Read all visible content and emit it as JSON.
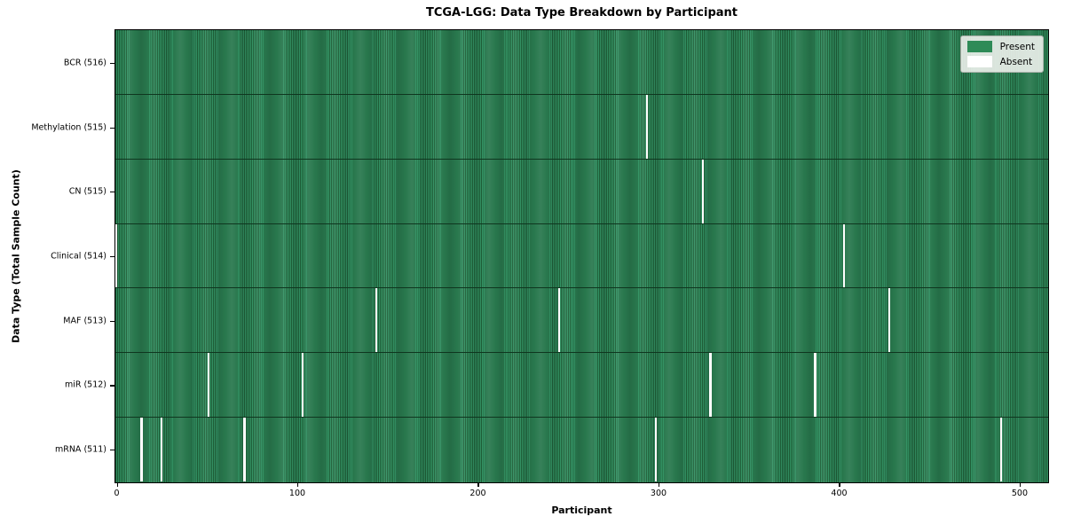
{
  "chart_data": {
    "type": "heatmap",
    "title": "TCGA-LGG: Data Type Breakdown by Participant",
    "xlabel": "Participant",
    "ylabel": "Data Type (Total Sample Count)",
    "n_participants": 516,
    "x_range": [
      -0.5,
      515.5
    ],
    "x_ticks": [
      0,
      100,
      200,
      300,
      400,
      500
    ],
    "grid": false,
    "legend_position": "upper right",
    "legend_items": [
      {
        "label": "Present",
        "color": "#2e8b57"
      },
      {
        "label": "Absent",
        "color": "#ffffff"
      }
    ],
    "colors": {
      "present_fill": "#339264",
      "present_edge": "#1e5e37",
      "absent": "#ffffff",
      "row_separator": "#0f361f"
    },
    "rows": [
      {
        "label": "BCR (516)",
        "total_samples": 516,
        "absent_participants": []
      },
      {
        "label": "Methylation (515)",
        "total_samples": 515,
        "absent_participants": [
          294
        ]
      },
      {
        "label": "CN (515)",
        "total_samples": 515,
        "absent_participants": [
          325
        ]
      },
      {
        "label": "Clinical (514)",
        "total_samples": 514,
        "absent_participants": [
          0,
          403
        ]
      },
      {
        "label": "MAF (513)",
        "total_samples": 513,
        "absent_participants": [
          144,
          245,
          428
        ]
      },
      {
        "label": "miR (512)",
        "total_samples": 512,
        "absent_participants": [
          51,
          103,
          329,
          387
        ]
      },
      {
        "label": "mRNA (511)",
        "total_samples": 511,
        "absent_participants": [
          14,
          25,
          71,
          299,
          490
        ]
      }
    ]
  }
}
